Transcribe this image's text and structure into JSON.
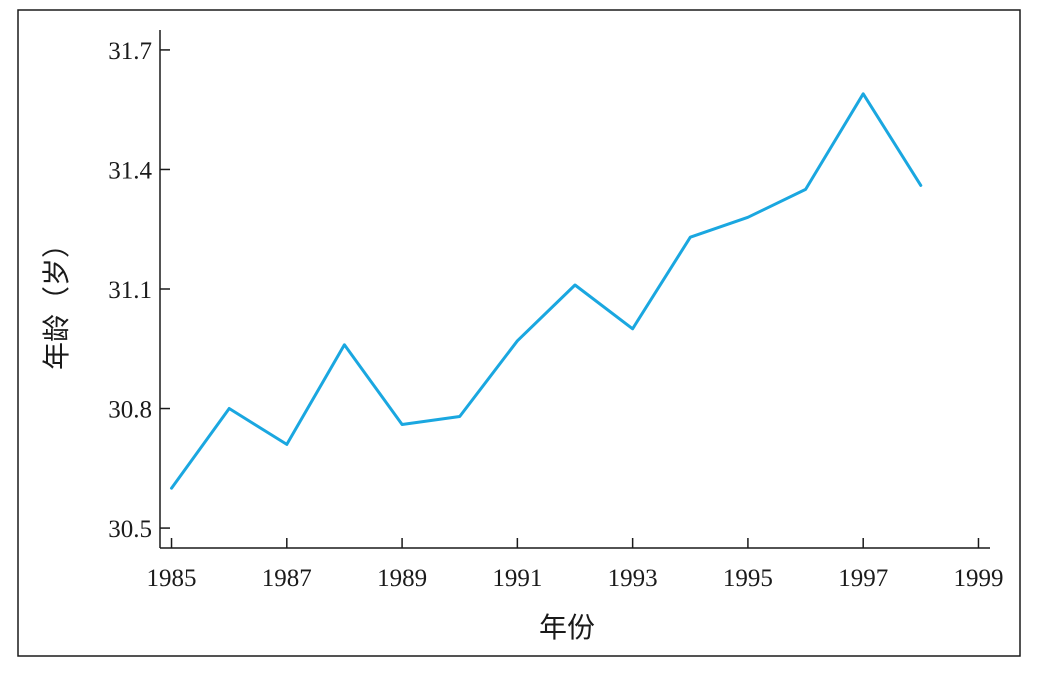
{
  "chart_data": {
    "type": "line",
    "title": "",
    "xlabel": "年份",
    "ylabel": "年龄（岁）",
    "x": [
      1985,
      1986,
      1987,
      1988,
      1989,
      1990,
      1991,
      1992,
      1993,
      1994,
      1995,
      1996,
      1997,
      1998
    ],
    "series": [
      {
        "values": [
          30.6,
          30.8,
          30.71,
          30.96,
          30.76,
          30.78,
          30.97,
          31.11,
          31.0,
          31.23,
          31.28,
          31.35,
          31.59,
          31.36
        ],
        "color": "#1aa7e0"
      }
    ],
    "xlim": [
      1984.8,
      1999.2
    ],
    "ylim": [
      30.45,
      31.75
    ],
    "x_ticks": [
      "1985",
      "1987",
      "1989",
      "1991",
      "1993",
      "1995",
      "1997",
      "1999"
    ],
    "y_ticks": [
      "30.5",
      "30.8",
      "31.1",
      "31.4",
      "31.7"
    ],
    "grid": false,
    "legend": "none"
  }
}
